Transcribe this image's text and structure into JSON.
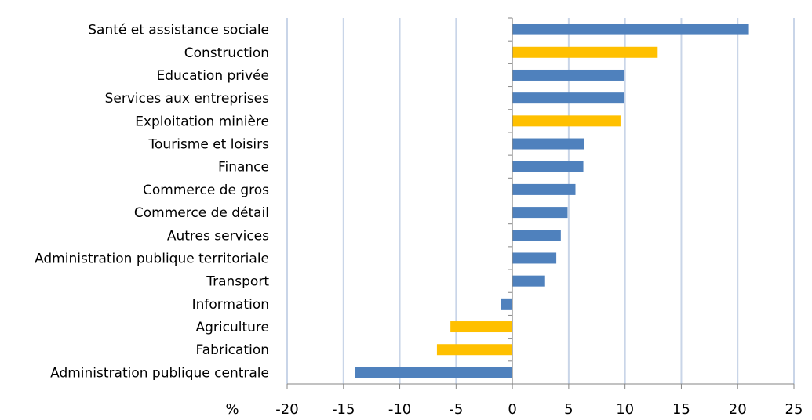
{
  "chart_data": {
    "type": "bar",
    "orientation": "horizontal",
    "xlabel": "%",
    "xlim": [
      -20,
      25
    ],
    "xticks": [
      -20,
      -15,
      -10,
      -5,
      0,
      5,
      10,
      15,
      20,
      25
    ],
    "grid": "vertical",
    "colors": {
      "blue": "#4f81bd",
      "yellow": "#ffc000",
      "grid": "#c9d5e8",
      "axis": "#868686"
    },
    "categories": [
      "Santé et assistance sociale",
      "Construction",
      "Education privée",
      "Services aux entreprises",
      "Exploitation minière",
      "Tourisme et loisirs",
      "Finance",
      "Commerce de gros",
      "Commerce de détail",
      "Autres services",
      "Administration publique territoriale",
      "Transport",
      "Information",
      "Agriculture",
      "Fabrication",
      "Administration publique centrale"
    ],
    "values": [
      21.0,
      12.9,
      9.9,
      9.9,
      9.6,
      6.4,
      6.3,
      5.6,
      4.9,
      4.3,
      3.9,
      2.9,
      -1.0,
      -5.5,
      -6.7,
      -14.0
    ],
    "bar_colors": [
      "blue",
      "yellow",
      "blue",
      "blue",
      "yellow",
      "blue",
      "blue",
      "blue",
      "blue",
      "blue",
      "blue",
      "blue",
      "blue",
      "yellow",
      "yellow",
      "blue"
    ]
  }
}
